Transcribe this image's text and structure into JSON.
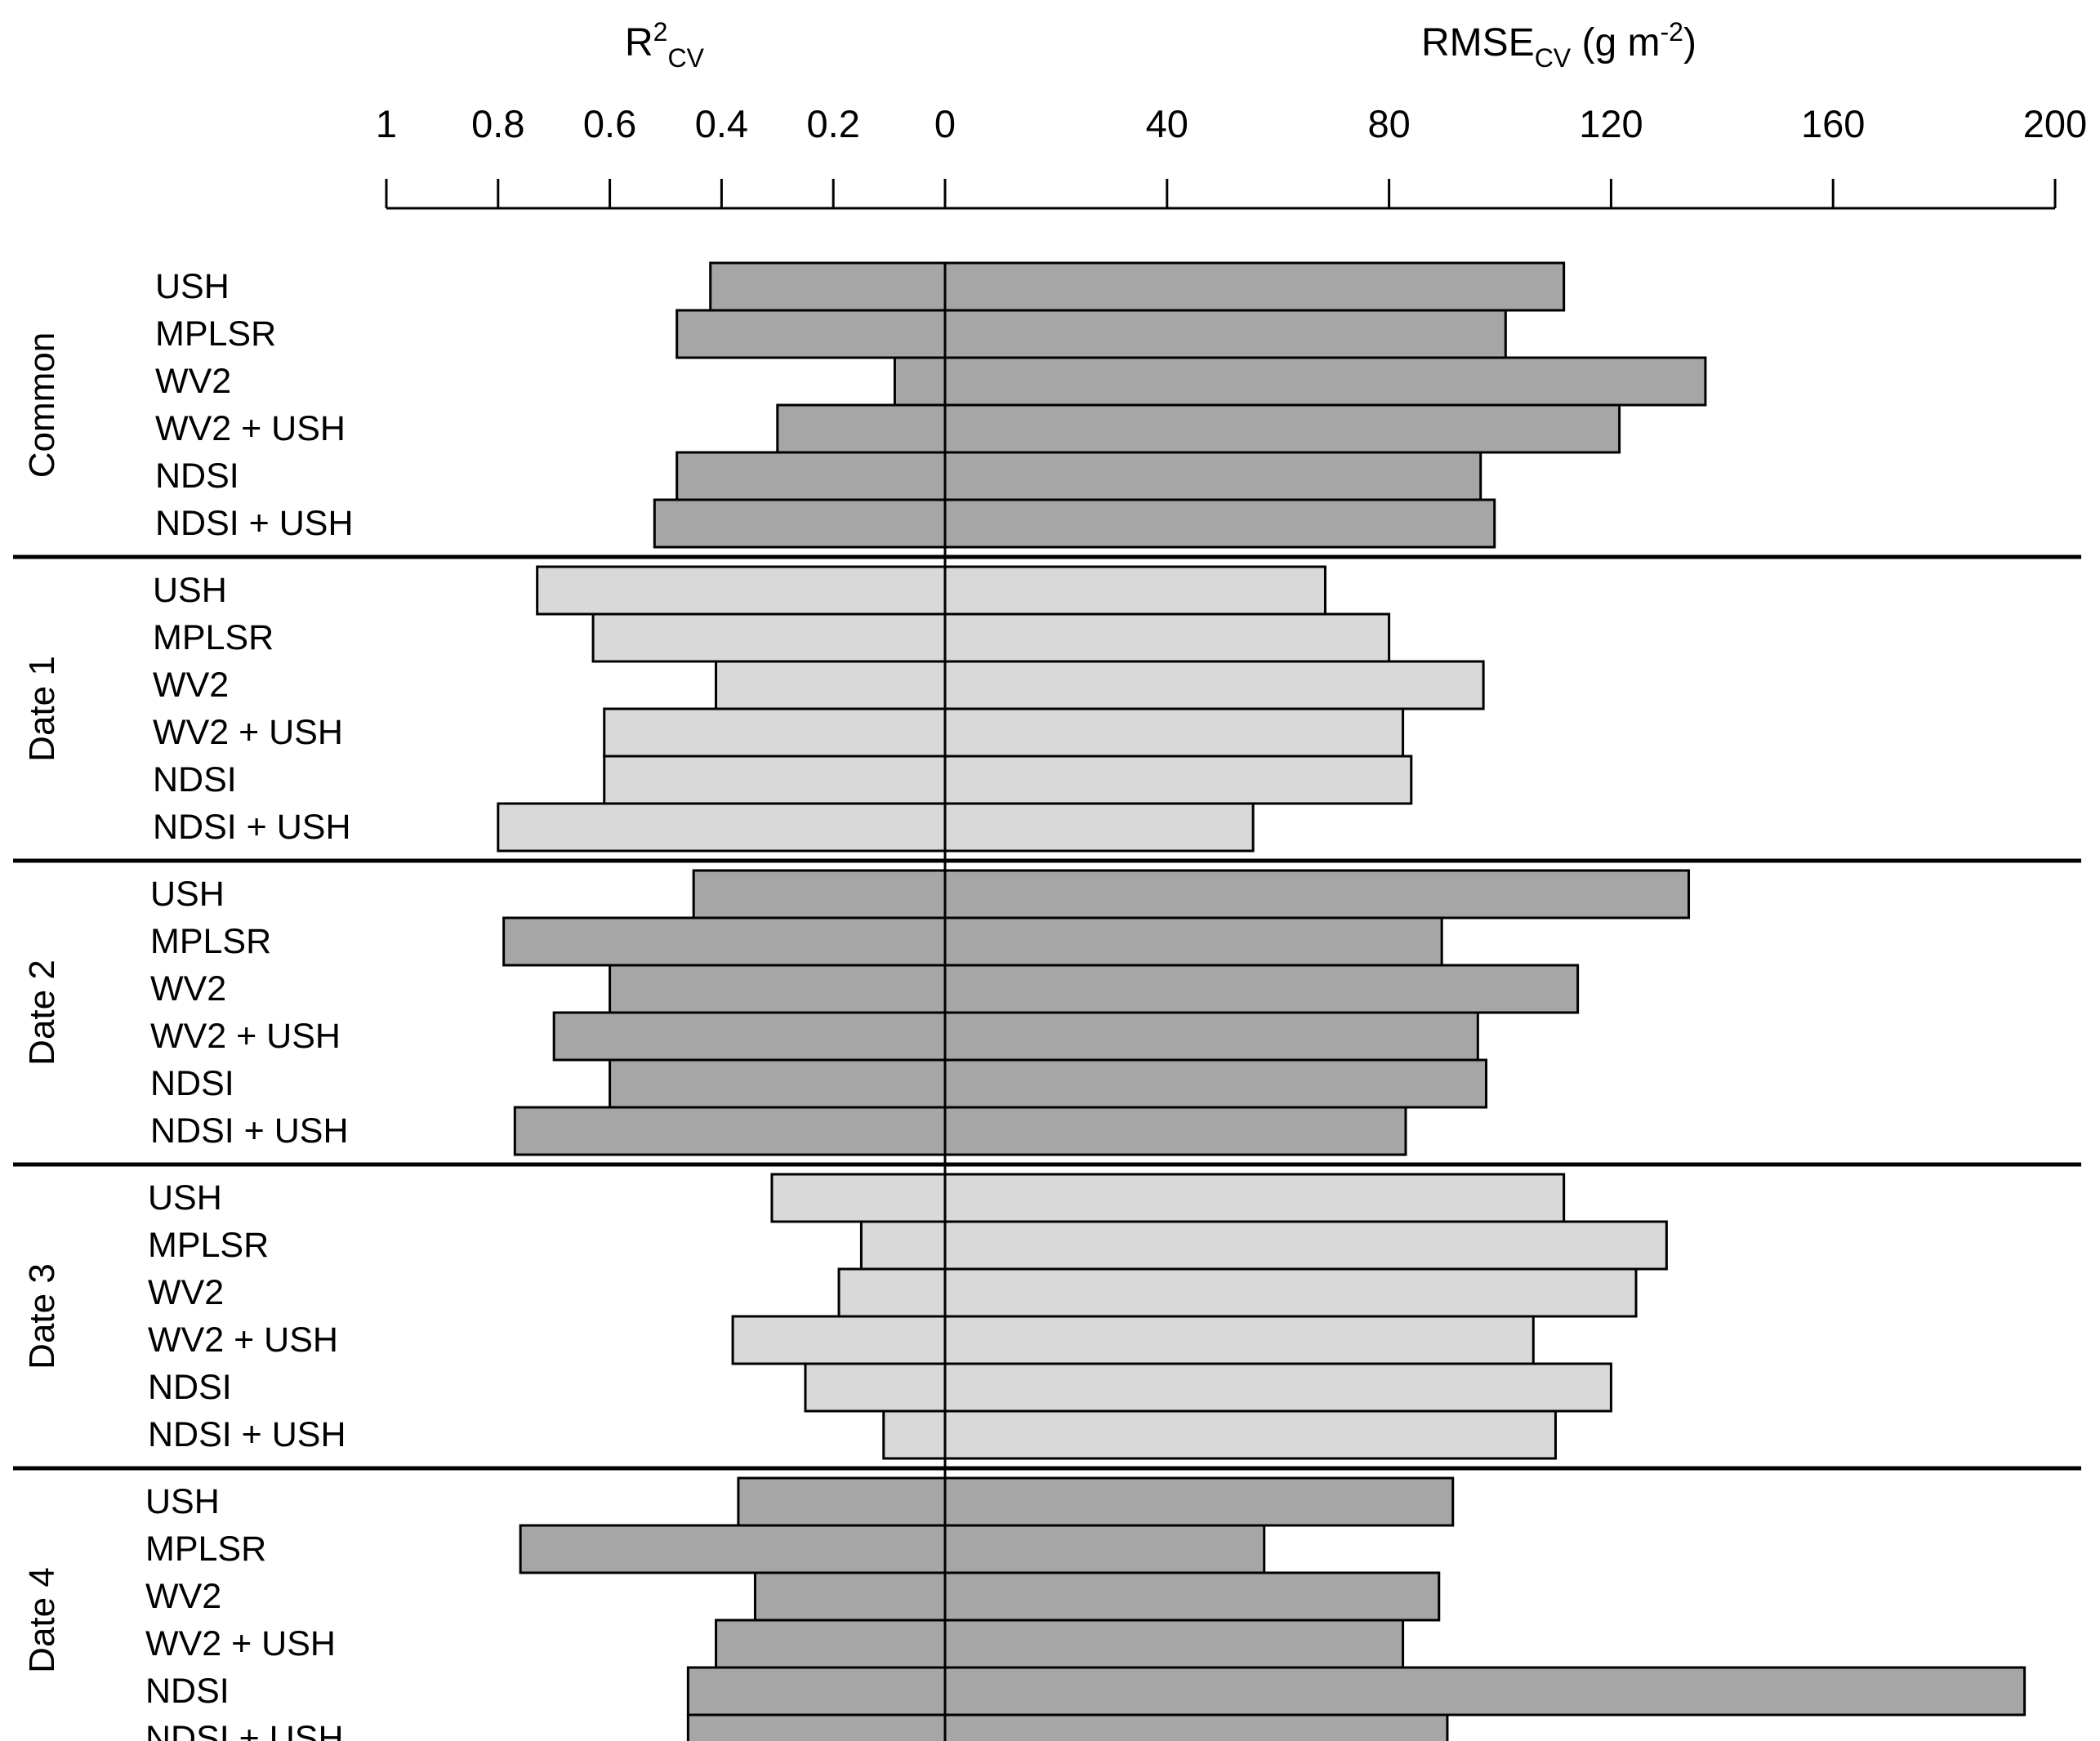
{
  "chart_data": {
    "type": "bar",
    "orientation": "horizontal-diverging",
    "left_axis": {
      "title_main": "R",
      "title_sup": "2",
      "title_sub": "CV",
      "range": [
        1,
        0
      ],
      "ticks": [
        "1",
        "0.8",
        "0.6",
        "0.4",
        "0.2",
        "0"
      ]
    },
    "right_axis": {
      "title_main": "RMSE",
      "title_sub": "CV",
      "title_unit": " (g m",
      "title_unit_sup": "-2",
      "title_unit_end": ")",
      "range": [
        0,
        200
      ],
      "ticks": [
        "0",
        "40",
        "80",
        "120",
        "160",
        "200"
      ]
    },
    "colors": {
      "dark": "#a6a6a6",
      "light": "#d9d9d9",
      "stroke": "#000000"
    },
    "groups": [
      {
        "name": "Common",
        "shade": "dark",
        "rows": [
          {
            "label": "USH",
            "r2": 0.42,
            "rmse": 111.5
          },
          {
            "label": "MPLSR",
            "r2": 0.48,
            "rmse": 101
          },
          {
            "label": "WV2",
            "r2": 0.09,
            "rmse": 137
          },
          {
            "label": "WV2 + USH",
            "r2": 0.3,
            "rmse": 121.5
          },
          {
            "label": "NDSI",
            "r2": 0.48,
            "rmse": 96.5
          },
          {
            "label": "NDSI + USH",
            "r2": 0.52,
            "rmse": 99
          }
        ]
      },
      {
        "name": "Date 1",
        "shade": "light",
        "rows": [
          {
            "label": "USH",
            "r2": 0.73,
            "rmse": 68.5
          },
          {
            "label": "MPLSR",
            "r2": 0.63,
            "rmse": 80
          },
          {
            "label": "WV2",
            "r2": 0.41,
            "rmse": 97
          },
          {
            "label": "WV2 + USH",
            "r2": 0.61,
            "rmse": 82.5
          },
          {
            "label": "NDSI",
            "r2": 0.61,
            "rmse": 84
          },
          {
            "label": "NDSI + USH",
            "r2": 0.8,
            "rmse": 55.5
          }
        ]
      },
      {
        "name": "Date 2",
        "shade": "dark",
        "rows": [
          {
            "label": "USH",
            "r2": 0.45,
            "rmse": 134
          },
          {
            "label": "MPLSR",
            "r2": 0.79,
            "rmse": 89.5
          },
          {
            "label": "WV2",
            "r2": 0.6,
            "rmse": 114
          },
          {
            "label": "WV2 + USH",
            "r2": 0.7,
            "rmse": 96
          },
          {
            "label": "NDSI",
            "r2": 0.6,
            "rmse": 97.5
          },
          {
            "label": "NDSI + USH",
            "r2": 0.77,
            "rmse": 83
          }
        ]
      },
      {
        "name": "Date 3",
        "shade": "light",
        "rows": [
          {
            "label": "USH",
            "r2": 0.31,
            "rmse": 111.5
          },
          {
            "label": "MPLSR",
            "r2": 0.15,
            "rmse": 130
          },
          {
            "label": "WV2",
            "r2": 0.19,
            "rmse": 124.5
          },
          {
            "label": "WV2 + USH",
            "r2": 0.38,
            "rmse": 106
          },
          {
            "label": "NDSI",
            "r2": 0.25,
            "rmse": 120
          },
          {
            "label": "NDSI + USH",
            "r2": 0.11,
            "rmse": 110
          }
        ]
      },
      {
        "name": "Date 4",
        "shade": "dark",
        "rows": [
          {
            "label": "USH",
            "r2": 0.37,
            "rmse": 91.5
          },
          {
            "label": "MPLSR",
            "r2": 0.76,
            "rmse": 57.5
          },
          {
            "label": "WV2",
            "r2": 0.34,
            "rmse": 89
          },
          {
            "label": "WV2 + USH",
            "r2": 0.41,
            "rmse": 82.5
          },
          {
            "label": "NDSI",
            "r2": 0.46,
            "rmse": 194.5
          },
          {
            "label": "NDSI + USH",
            "r2": 0.46,
            "rmse": 90.5
          }
        ]
      }
    ]
  }
}
